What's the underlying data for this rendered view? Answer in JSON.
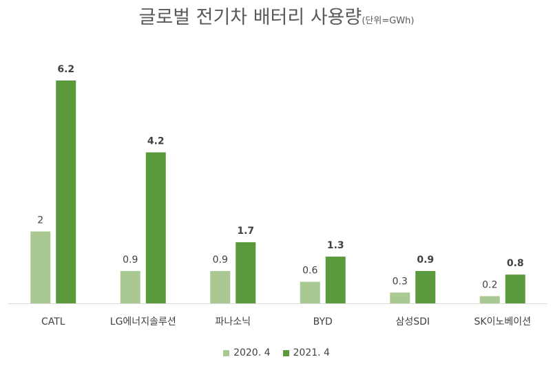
{
  "chart_data": {
    "type": "bar",
    "title": "글로벌 전기차 배터리 사용량",
    "title_unit": "(단위=GWh)",
    "categories": [
      "CATL",
      "LG에너지솔루션",
      "파나소닉",
      "BYD",
      "삼성SDI",
      "SK이노베이션"
    ],
    "series": [
      {
        "name": "2020. 4",
        "values": [
          2,
          0.9,
          0.9,
          0.6,
          0.3,
          0.2
        ],
        "color": "#a9c892",
        "label_bold": false
      },
      {
        "name": "2021. 4",
        "values": [
          6.2,
          4.2,
          1.7,
          1.3,
          0.9,
          0.8
        ],
        "color": "#5b9a3c",
        "label_bold": true
      }
    ],
    "ylim": [
      0,
      6.2
    ],
    "grid": false,
    "legend_position": "bottom",
    "xlabel": "",
    "ylabel": ""
  }
}
